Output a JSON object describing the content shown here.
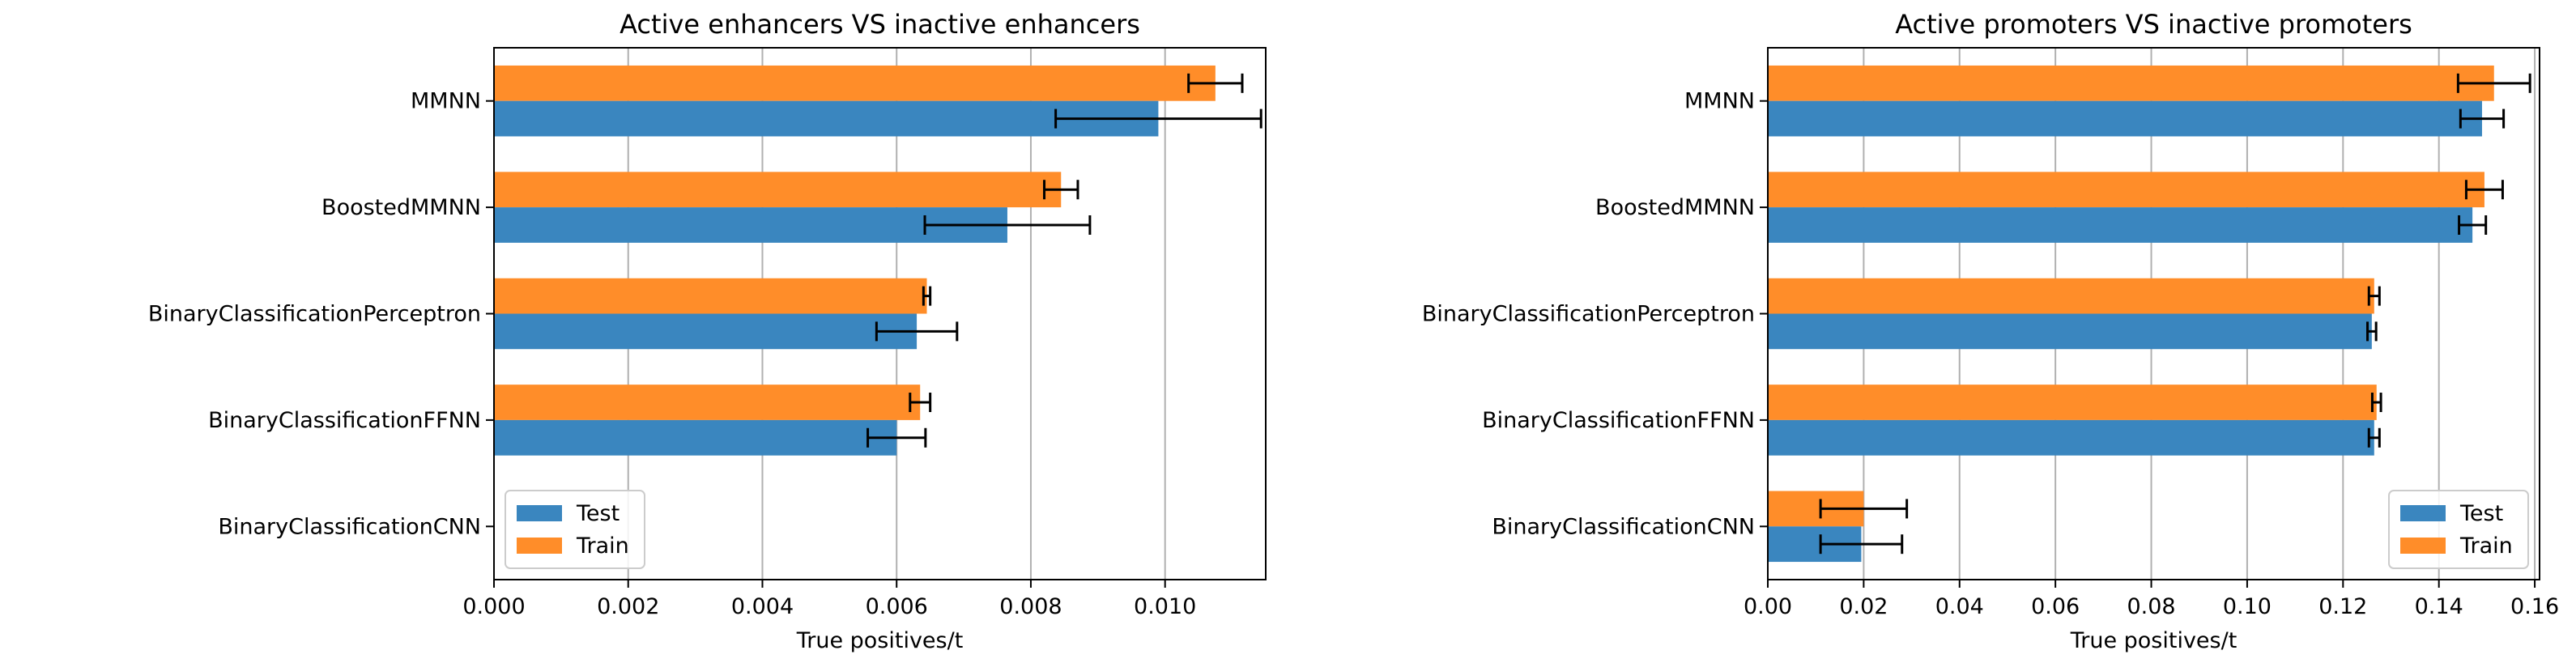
{
  "colors": {
    "test": "#3a86bf",
    "train": "#ff8d29",
    "grid": "#b0b0b0"
  },
  "chart_data": [
    {
      "type": "bar",
      "orientation": "horizontal",
      "title": "Active enhancers VS inactive enhancers",
      "xlabel": "True positives/t",
      "ylabel": "",
      "categories": [
        "MMNN",
        "BoostedMMNN",
        "BinaryClassificationPerceptron",
        "BinaryClassificationFFNN",
        "BinaryClassificationCNN"
      ],
      "xlim": [
        0,
        0.0115
      ],
      "xticks": [
        0.0,
        0.002,
        0.004,
        0.006,
        0.008,
        0.01
      ],
      "xtick_labels": [
        "0.000",
        "0.002",
        "0.004",
        "0.006",
        "0.008",
        "0.010"
      ],
      "grid": "vertical",
      "legend": "lower-left",
      "series": [
        {
          "name": "Test",
          "values": [
            0.0099,
            0.00765,
            0.0063,
            0.006,
            0.0
          ],
          "errors": [
            0.00153,
            0.00123,
            0.0006,
            0.00043,
            0.0
          ]
        },
        {
          "name": "Train",
          "values": [
            0.01075,
            0.00845,
            0.00645,
            0.00635,
            0.0
          ],
          "errors": [
            0.0004,
            0.00025,
            5e-05,
            0.00015,
            0.0
          ]
        }
      ]
    },
    {
      "type": "bar",
      "orientation": "horizontal",
      "title": "Active promoters VS inactive promoters",
      "xlabel": "True positives/t",
      "ylabel": "",
      "categories": [
        "MMNN",
        "BoostedMMNN",
        "BinaryClassificationPerceptron",
        "BinaryClassificationFFNN",
        "BinaryClassificationCNN"
      ],
      "xlim": [
        0,
        0.161
      ],
      "xticks": [
        0.0,
        0.02,
        0.04,
        0.06,
        0.08,
        0.1,
        0.12,
        0.14,
        0.16
      ],
      "xtick_labels": [
        "0.00",
        "0.02",
        "0.04",
        "0.06",
        "0.08",
        "0.10",
        "0.12",
        "0.14",
        "0.16"
      ],
      "grid": "vertical",
      "legend": "lower-right",
      "series": [
        {
          "name": "Test",
          "values": [
            0.149,
            0.147,
            0.126,
            0.1265,
            0.0195
          ],
          "errors": [
            0.0045,
            0.0028,
            0.0009,
            0.0011,
            0.0085
          ]
        },
        {
          "name": "Train",
          "values": [
            0.1515,
            0.1495,
            0.1265,
            0.127,
            0.02
          ],
          "errors": [
            0.0075,
            0.0038,
            0.0011,
            0.0009,
            0.009
          ]
        }
      ]
    }
  ]
}
